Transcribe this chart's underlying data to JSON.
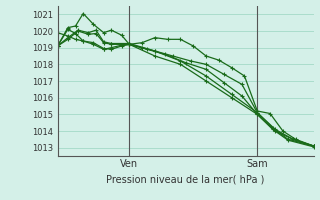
{
  "bg_color": "#d4f0e8",
  "grid_color": "#aaddcc",
  "line_color": "#1a6b1a",
  "marker_color": "#1a6b1a",
  "ylabel_ticks": [
    1013,
    1014,
    1015,
    1016,
    1017,
    1018,
    1019,
    1020,
    1021
  ],
  "ylim": [
    1012.5,
    1021.5
  ],
  "xlabel": "Pression niveau de la mer( hPa )",
  "vline_labels": [
    "Ven",
    "Sam"
  ],
  "vline_positions": [
    0.28,
    0.78
  ],
  "series": [
    {
      "x": [
        0.0,
        0.04,
        0.08,
        0.12,
        0.15,
        0.18,
        0.21,
        0.28,
        0.38,
        0.48,
        0.58,
        0.68,
        0.78,
        0.85,
        0.92,
        1.0
      ],
      "y": [
        1019.1,
        1019.5,
        1020.0,
        1019.8,
        1019.85,
        1019.3,
        1019.2,
        1019.2,
        1018.5,
        1018.0,
        1017.0,
        1016.0,
        1015.0,
        1014.0,
        1013.5,
        1013.1
      ],
      "marker": "+"
    },
    {
      "x": [
        0.0,
        0.04,
        0.08,
        0.12,
        0.15,
        0.18,
        0.21,
        0.28,
        0.38,
        0.48,
        0.58,
        0.68,
        0.78,
        0.85,
        0.92,
        1.0
      ],
      "y": [
        1019.1,
        1019.6,
        1020.05,
        1019.9,
        1020.05,
        1019.35,
        1019.25,
        1019.25,
        1018.8,
        1018.2,
        1017.3,
        1016.2,
        1015.1,
        1014.1,
        1013.5,
        1013.1
      ],
      "marker": "+"
    },
    {
      "x": [
        0.0,
        0.04,
        0.07,
        0.1,
        0.14,
        0.18,
        0.21,
        0.25,
        0.28,
        0.33,
        0.38,
        0.43,
        0.48,
        0.53,
        0.58,
        0.63,
        0.68,
        0.73,
        0.78,
        0.83,
        0.88,
        0.93,
        1.0
      ],
      "y": [
        1019.1,
        1020.2,
        1020.3,
        1021.05,
        1020.4,
        1019.9,
        1020.05,
        1019.75,
        1019.2,
        1019.3,
        1019.6,
        1019.5,
        1019.5,
        1019.1,
        1018.5,
        1018.25,
        1017.8,
        1017.3,
        1015.2,
        1015.05,
        1014.0,
        1013.5,
        1013.1
      ],
      "marker": "+"
    },
    {
      "x": [
        0.0,
        0.04,
        0.07,
        0.1,
        0.14,
        0.18,
        0.21,
        0.25,
        0.28,
        0.33,
        0.38,
        0.45,
        0.52,
        0.58,
        0.65,
        0.72,
        0.78,
        0.84,
        0.9,
        1.0
      ],
      "y": [
        1019.1,
        1020.1,
        1019.85,
        1019.4,
        1019.2,
        1018.9,
        1019.0,
        1019.15,
        1019.2,
        1019.0,
        1018.8,
        1018.5,
        1018.2,
        1018.0,
        1017.4,
        1016.8,
        1015.1,
        1014.2,
        1013.5,
        1013.1
      ],
      "marker": "+"
    },
    {
      "x": [
        0.0,
        0.04,
        0.07,
        0.1,
        0.14,
        0.18,
        0.21,
        0.25,
        0.28,
        0.35,
        0.42,
        0.5,
        0.58,
        0.65,
        0.72,
        0.78,
        0.84,
        0.9,
        1.0
      ],
      "y": [
        1019.9,
        1019.7,
        1019.5,
        1019.4,
        1019.3,
        1018.95,
        1018.9,
        1019.1,
        1019.2,
        1018.9,
        1018.6,
        1018.1,
        1017.7,
        1016.9,
        1016.1,
        1015.0,
        1014.1,
        1013.45,
        1013.05
      ],
      "marker": "+"
    }
  ]
}
